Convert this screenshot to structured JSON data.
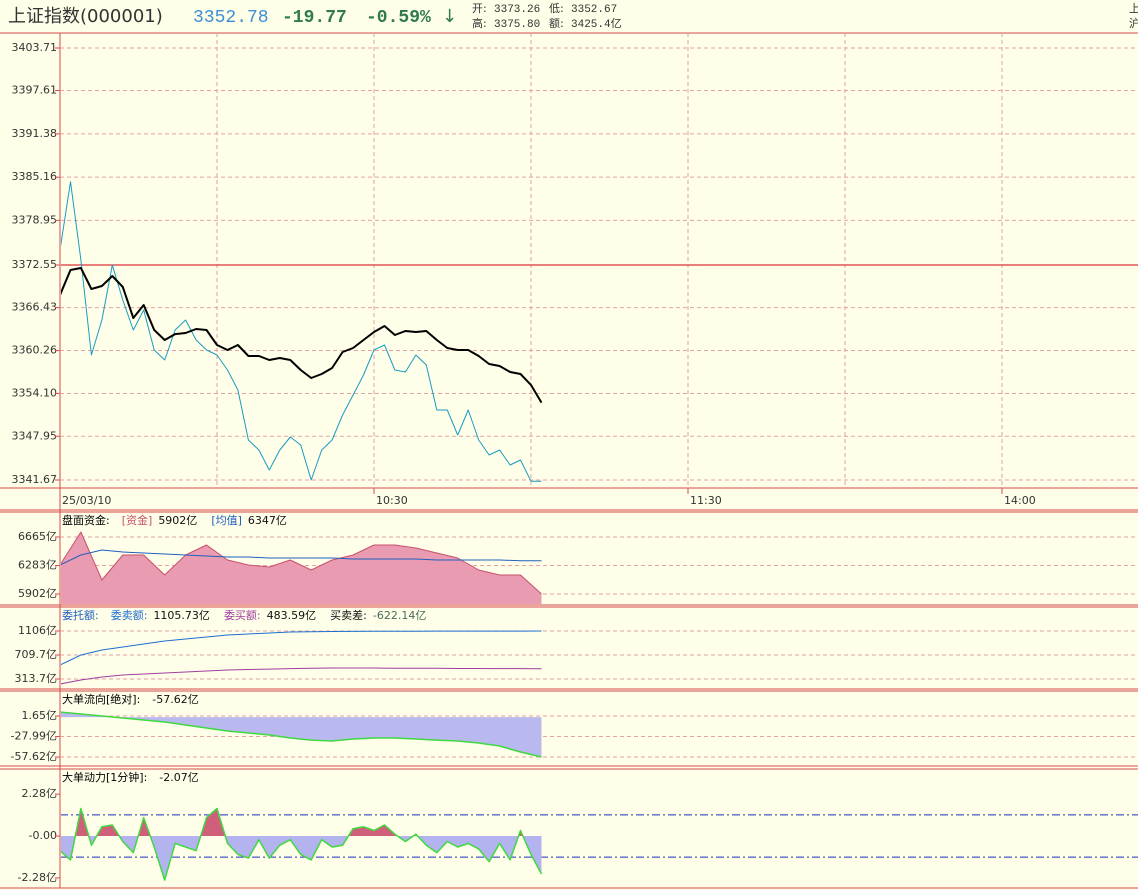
{
  "header": {
    "title": "上证指数(000001)",
    "price": "3352.78",
    "change": "-19.77",
    "change_pct": "-0.59%",
    "arrow": "↓",
    "stats": [
      {
        "label": "开:",
        "value": "3373.26"
      },
      {
        "label": "低:",
        "value": "3352.67"
      },
      {
        "label": "高:",
        "value": "3375.80"
      },
      {
        "label": "额:",
        "value": "3425.4亿"
      }
    ],
    "edge": [
      "上",
      "沪"
    ]
  },
  "chart_data": [
    {
      "type": "line",
      "x": [
        0,
        2,
        4,
        6,
        8,
        10,
        12,
        14,
        16,
        18,
        20,
        22,
        24,
        26,
        28,
        30,
        32,
        34,
        36,
        38,
        40,
        42,
        44,
        46,
        48,
        50,
        52,
        54,
        56,
        58,
        60,
        62,
        64,
        66,
        68,
        70,
        72,
        74,
        76,
        78,
        80,
        82,
        84,
        86,
        88,
        90,
        92
      ],
      "xlim": [
        0,
        240
      ],
      "xticks": [
        {
          "value": 0,
          "label": "25/03/10"
        },
        {
          "value": 60,
          "label": "10:30"
        },
        {
          "value": 120,
          "label": "11:30"
        },
        {
          "value": 180,
          "label": "14:00"
        }
      ],
      "xgrid": [
        30,
        60,
        90,
        120,
        150,
        180
      ],
      "ylim": [
        3341.67,
        3403.71
      ],
      "yticks": [
        3403.71,
        3397.61,
        3391.38,
        3385.16,
        3378.95,
        3372.55,
        3366.43,
        3360.26,
        {
          "value": 3354.1,
          "label": "3354.10"
        },
        3347.95,
        3341.67
      ],
      "grid": true,
      "ref_lines": [
        3372.55
      ],
      "ref_color": "#e05555",
      "series": [
        {
          "color": "#1a9bc4",
          "width": 1,
          "values": [
            3374.7,
            3384.5,
            3373.27,
            3359.62,
            3364.65,
            3372.55,
            3367.52,
            3363.21,
            3366.08,
            3360.34,
            3358.9,
            3363.21,
            3364.65,
            3361.78,
            3360.34,
            3359.62,
            3357.47,
            3354.59,
            3347.41,
            3345.98,
            3343.1,
            3345.98,
            3347.84,
            3346.69,
            3341.67,
            3345.98,
            3347.41,
            3351.0,
            3353.87,
            3356.75,
            3360.34,
            3361.06,
            3357.47,
            3357.18,
            3359.62,
            3358.18,
            3351.72,
            3351.72,
            3348.13,
            3351.72,
            3347.41,
            3345.26,
            3345.98,
            3343.82,
            3344.54,
            3341.5,
            3341.5
          ]
        },
        {
          "color": "#000000",
          "width": 2,
          "values": [
            3368.24,
            3371.83,
            3372.11,
            3369.1,
            3369.53,
            3370.97,
            3369.39,
            3364.93,
            3366.8,
            3363.21,
            3361.78,
            3362.63,
            3362.78,
            3363.35,
            3363.21,
            3361.06,
            3360.34,
            3361.06,
            3359.48,
            3359.48,
            3358.9,
            3359.19,
            3358.9,
            3357.47,
            3356.32,
            3356.89,
            3357.75,
            3360.05,
            3360.63,
            3361.78,
            3362.92,
            3363.79,
            3362.49,
            3363.07,
            3362.92,
            3363.07,
            3361.78,
            3360.63,
            3360.34,
            3360.34,
            3359.48,
            3358.33,
            3358.04,
            3357.18,
            3356.89,
            3355.31,
            3352.78
          ]
        }
      ]
    },
    {
      "type": "line",
      "title": "盘面资金:",
      "title_color": "#000000",
      "x": [
        0,
        4,
        8,
        12,
        16,
        20,
        24,
        28,
        32,
        36,
        40,
        44,
        48,
        52,
        56,
        60,
        64,
        68,
        72,
        76,
        80,
        84,
        88,
        92
      ],
      "xlim": [
        0,
        240
      ],
      "ylim": [
        5768,
        6986
      ],
      "yticks": [
        {
          "value": 6665,
          "label": "6665亿"
        },
        {
          "value": 6283,
          "label": "6283亿"
        },
        {
          "value": 5902,
          "label": "5902亿"
        }
      ],
      "grid": true,
      "series": [
        {
          "name": "[资金]",
          "current": "5902亿",
          "color": "#c8506e",
          "fill": "#e89bb1",
          "width": 1,
          "values": [
            6290,
            6732,
            6089,
            6424,
            6424,
            6156,
            6424,
            6558,
            6357,
            6290,
            6263,
            6357,
            6223,
            6357,
            6424,
            6558,
            6558,
            6518,
            6451,
            6384,
            6223,
            6156,
            6156,
            5902
          ]
        },
        {
          "name": "[均值]",
          "current": "6347亿",
          "color": "#2060c0",
          "width": 1,
          "values": [
            6290,
            6424,
            6491,
            6464,
            6451,
            6437,
            6424,
            6411,
            6397,
            6397,
            6384,
            6384,
            6384,
            6384,
            6370,
            6370,
            6370,
            6370,
            6357,
            6357,
            6357,
            6357,
            6347,
            6347
          ]
        }
      ]
    },
    {
      "type": "line",
      "title": "委托额:",
      "title_color": "#2060c0",
      "x": [
        0,
        4,
        8,
        12,
        16,
        20,
        24,
        28,
        32,
        36,
        40,
        44,
        48,
        52,
        56,
        60,
        64,
        68,
        72,
        76,
        80,
        84,
        88,
        92
      ],
      "xlim": [
        0,
        240
      ],
      "ylim": [
        149,
        1502
      ],
      "yticks": [
        {
          "value": 1106,
          "label": "1106亿"
        },
        {
          "value": 709.7,
          "label": "709.7亿"
        },
        {
          "value": 313.7,
          "label": "313.7亿"
        }
      ],
      "grid": true,
      "series": [
        {
          "name": "委卖额:",
          "current": "1105.73亿",
          "color": "#1e6fd0",
          "width": 1,
          "values": [
            545,
            710,
            792,
            842,
            891,
            941,
            974,
            1007,
            1040,
            1057,
            1073,
            1090,
            1095,
            1098,
            1100,
            1101,
            1102,
            1103,
            1104,
            1104,
            1105,
            1105,
            1105,
            1105.73
          ]
        },
        {
          "name": "委买额:",
          "current": "483.59亿",
          "color": "#a040a0",
          "width": 1,
          "values": [
            231,
            297,
            347,
            380,
            396,
            413,
            429,
            446,
            462,
            470,
            478,
            485,
            490,
            495,
            495,
            495,
            492,
            490,
            490,
            488,
            488,
            486,
            485,
            483.59
          ]
        }
      ],
      "diff": {
        "label": "买卖差:",
        "value": "-622.14亿"
      }
    },
    {
      "type": "line",
      "title": "大单流向[绝对]:",
      "title_color": "#000000",
      "x": [
        0,
        4,
        8,
        12,
        16,
        20,
        24,
        28,
        32,
        36,
        40,
        44,
        48,
        52,
        56,
        60,
        64,
        68,
        72,
        76,
        80,
        84,
        88,
        92
      ],
      "xlim": [
        0,
        240
      ],
      "ylim": [
        -70.6,
        37.8
      ],
      "yticks": [
        {
          "value": 1.65,
          "label": "1.65亿"
        },
        {
          "value": -27.99,
          "label": "-27.99亿"
        },
        {
          "value": -57.62,
          "label": "-57.62亿"
        }
      ],
      "grid": true,
      "series": [
        {
          "current": "-57.62亿",
          "color": "#40d840",
          "fill": "#b9b9f0",
          "width": 1.5,
          "values": [
            7.4,
            4.5,
            1.65,
            -1.2,
            -4.1,
            -7.0,
            -11.4,
            -15.7,
            -20.0,
            -22.9,
            -25.8,
            -30.2,
            -33.1,
            -34.5,
            -31.6,
            -30.2,
            -30.2,
            -31.6,
            -33.1,
            -34.5,
            -37.4,
            -41.7,
            -50.4,
            -57.62
          ]
        }
      ]
    },
    {
      "type": "line",
      "title": "大单动力[1分钟]:",
      "title_color": "#000000",
      "x": [
        0,
        2,
        4,
        6,
        8,
        10,
        12,
        14,
        16,
        18,
        20,
        22,
        24,
        26,
        28,
        30,
        32,
        34,
        36,
        38,
        40,
        42,
        44,
        46,
        48,
        50,
        52,
        54,
        56,
        58,
        60,
        62,
        64,
        66,
        68,
        70,
        72,
        74,
        76,
        78,
        80,
        82,
        84,
        86,
        88,
        90,
        92
      ],
      "xlim": [
        0,
        240
      ],
      "ylim": [
        -2.83,
        3.65
      ],
      "yticks": [
        {
          "value": 2.28,
          "label": "2.28亿"
        },
        {
          "value": 0,
          "label": "-0.00"
        },
        {
          "value": -2.28,
          "label": "-2.28亿"
        }
      ],
      "grid": false,
      "ref_lines": [
        1.15,
        -1.15
      ],
      "ref_color": "#2030c0",
      "series": [
        {
          "current": "-2.07亿",
          "color": "#40d840",
          "fill": "#d0607a",
          "fill_negative": "#b3b3f0",
          "width": 1.5,
          "values": [
            -0.8,
            -1.3,
            1.5,
            -0.5,
            0.5,
            0.6,
            -0.3,
            -0.9,
            1.0,
            -0.6,
            -2.4,
            -0.4,
            -0.6,
            -0.8,
            1.0,
            1.5,
            -0.4,
            -1.0,
            -1.2,
            -0.2,
            -1.2,
            -0.5,
            -0.2,
            -1.0,
            -1.3,
            -0.2,
            -0.6,
            -0.5,
            0.4,
            0.5,
            0.3,
            0.6,
            0.1,
            -0.3,
            0.1,
            -0.5,
            -0.9,
            -0.3,
            -0.6,
            -0.4,
            -0.7,
            -1.4,
            -0.4,
            -1.3,
            0.3,
            -1.0,
            -2.07
          ]
        }
      ]
    }
  ]
}
